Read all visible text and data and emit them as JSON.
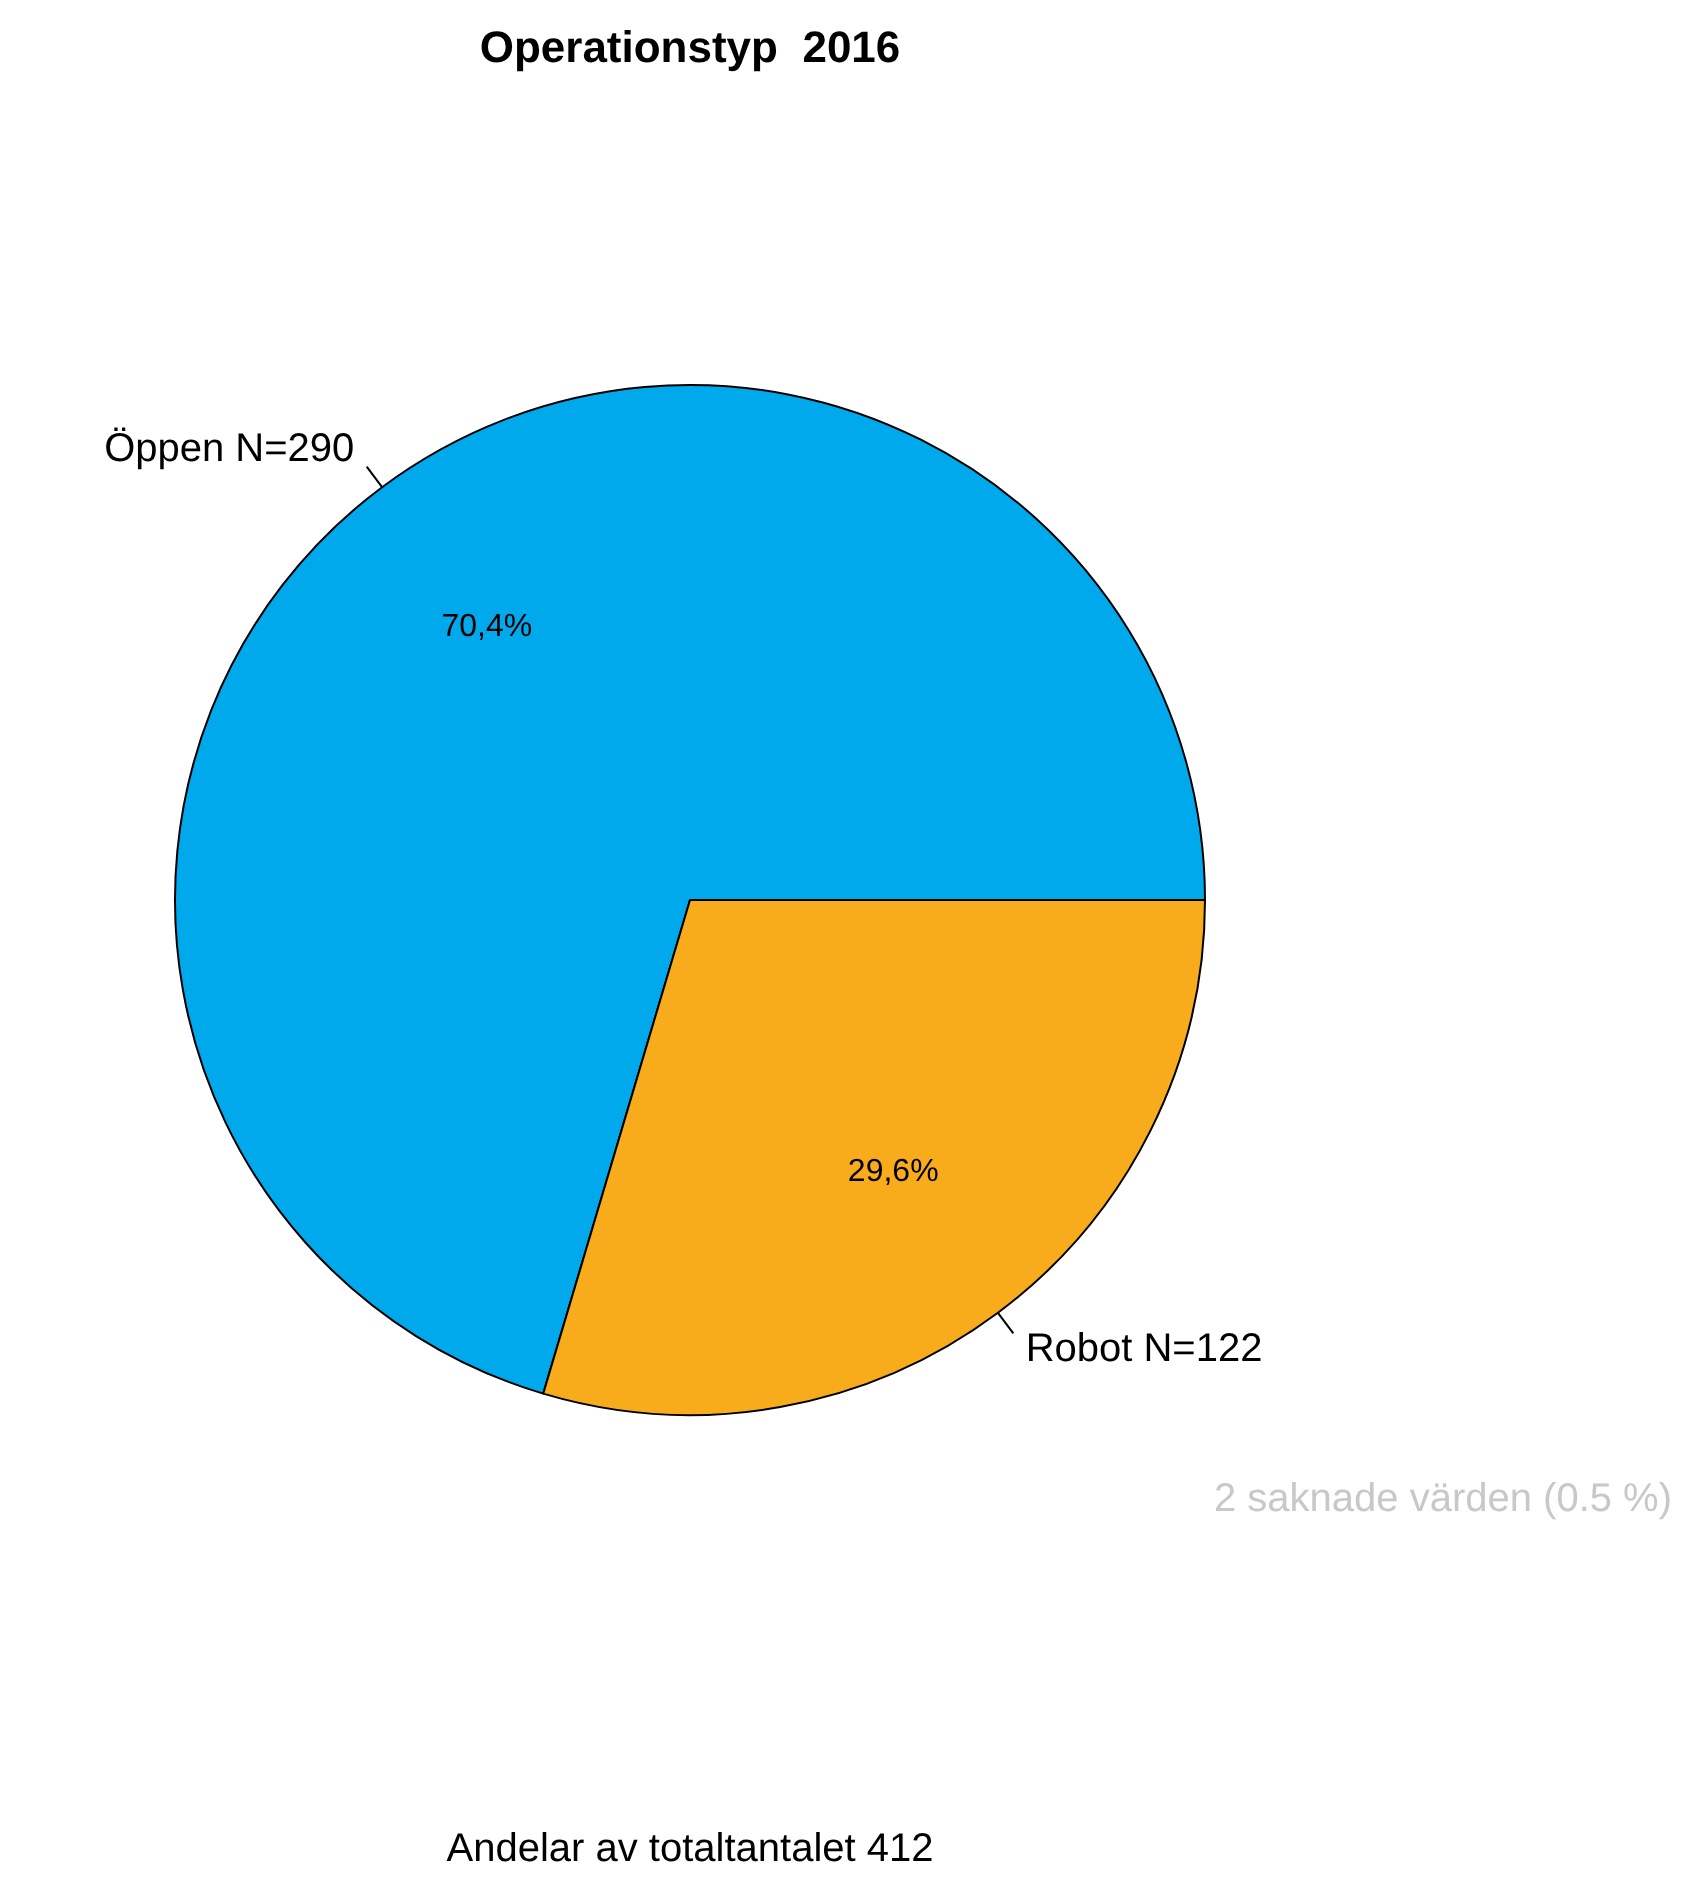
{
  "chart_data": {
    "type": "pie",
    "title": "Operationstyp  2016",
    "categories": [
      "Öppen N=290",
      "Robot N=122"
    ],
    "values": [
      70.4,
      29.6
    ],
    "colors": [
      "#00a8ec",
      "#f8ac1c"
    ],
    "value_labels": [
      "70,4%",
      "29,6%"
    ],
    "annotations": [
      "2 saknade värden (0.5 %)",
      "Andelar av totaltantalet 412"
    ]
  }
}
